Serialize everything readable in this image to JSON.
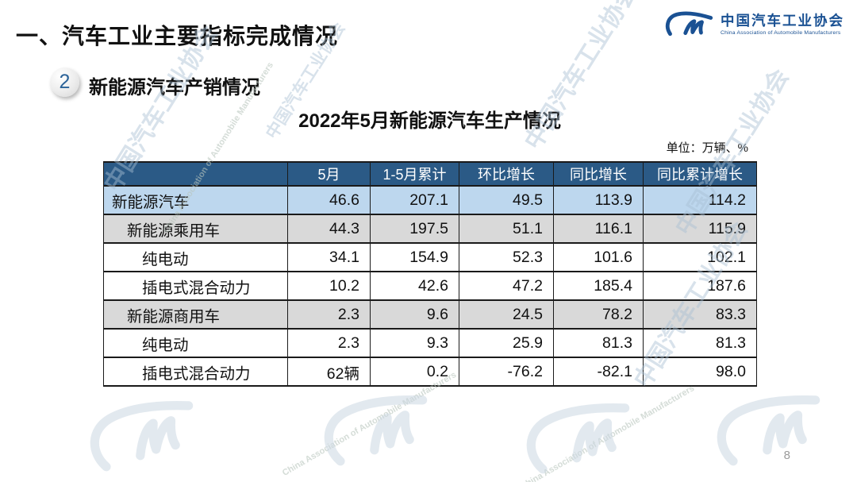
{
  "page": {
    "title": "一、汽车工业主要指标完成情况",
    "page_number": "8"
  },
  "logo": {
    "icon": "cam-cm-logo",
    "name_cn": "中国汽车工业协会",
    "name_en": "China Association of Automobile Manufacturers",
    "color": "#1A5193"
  },
  "section": {
    "badge": "2",
    "label": "新能源汽车产销情况"
  },
  "table": {
    "title": "2022年5月新能源汽车生产情况",
    "unit_note": "单位：万辆、%",
    "columns": [
      "",
      "5月",
      "1-5月累计",
      "环比增长",
      "同比增长",
      "同比累计增长"
    ],
    "colors": {
      "header_bg": "#2B5A86",
      "header_text": "#FFFFFF",
      "row_blue": "#BDD7EE",
      "row_gray": "#D9D9D9",
      "row_white": "#FFFFFF",
      "border": "#1A1A1A"
    },
    "rows": [
      {
        "label": "新能源汽车",
        "indent": 0,
        "bg": "row_blue",
        "values": [
          "46.6",
          "207.1",
          "49.5",
          "113.9",
          "114.2"
        ]
      },
      {
        "label": "新能源乘用车",
        "indent": 1,
        "bg": "row_gray",
        "values": [
          "44.3",
          "197.5",
          "51.1",
          "116.1",
          "115.9"
        ]
      },
      {
        "label": "纯电动",
        "indent": 2,
        "bg": "row_white",
        "values": [
          "34.1",
          "154.9",
          "52.3",
          "101.6",
          "102.1"
        ]
      },
      {
        "label": "插电式混合动力",
        "indent": 2,
        "bg": "row_white",
        "values": [
          "10.2",
          "42.6",
          "47.2",
          "185.4",
          "187.6"
        ]
      },
      {
        "label": "新能源商用车",
        "indent": 1,
        "bg": "row_gray",
        "values": [
          "2.3",
          "9.6",
          "24.5",
          "78.2",
          "83.3"
        ]
      },
      {
        "label": "纯电动",
        "indent": 2,
        "bg": "row_white",
        "values": [
          "2.3",
          "9.3",
          "25.9",
          "81.3",
          "81.3"
        ]
      },
      {
        "label": "插电式混合动力",
        "indent": 2,
        "bg": "row_white",
        "values": [
          "62辆",
          "0.2",
          "-76.2",
          "-82.1",
          "98.0"
        ]
      }
    ]
  },
  "watermark": {
    "text_cn": "中国汽车工业协会",
    "text_en": "China Association of Automobile Manufacturers"
  }
}
